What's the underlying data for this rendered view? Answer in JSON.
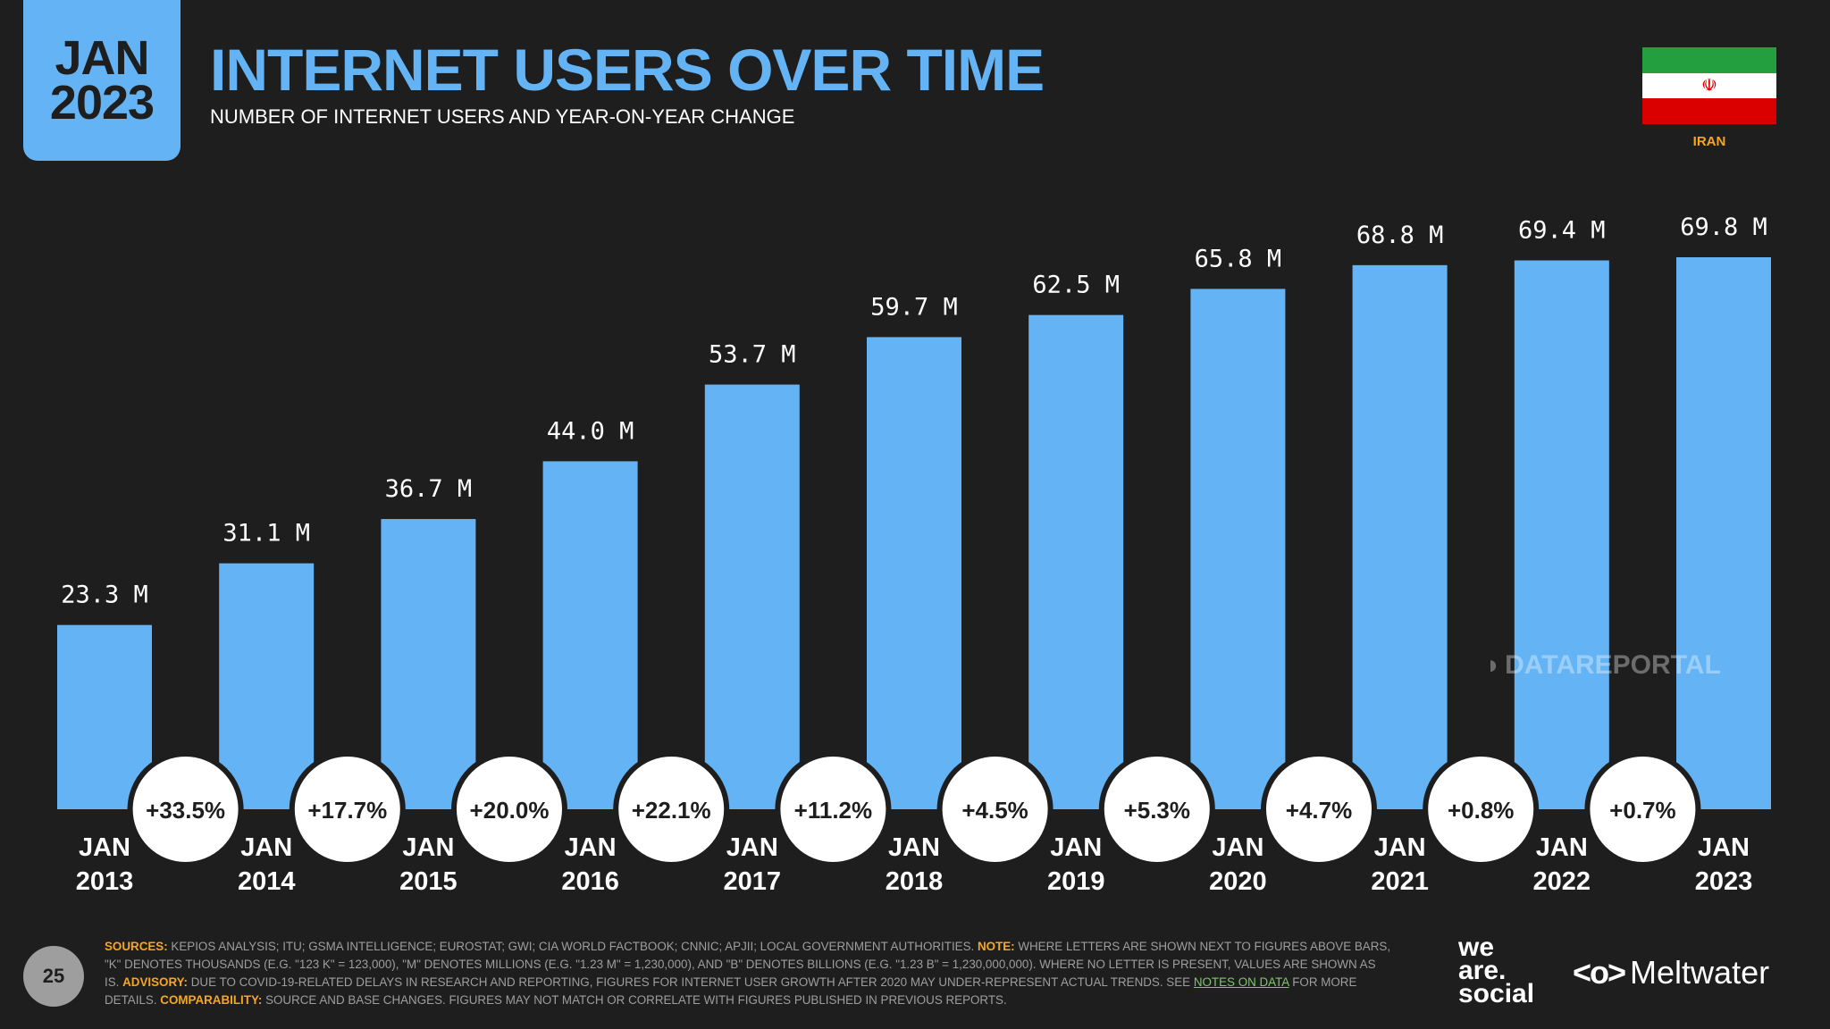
{
  "header": {
    "date_month": "JAN",
    "date_year": "2023",
    "title": "INTERNET USERS OVER TIME",
    "subtitle": "NUMBER OF INTERNET USERS AND YEAR-ON-YEAR CHANGE",
    "country": "IRAN"
  },
  "flag": {
    "emblem": "☫"
  },
  "colors": {
    "accent": "#64b4f5",
    "background": "#1e1e1e",
    "highlight": "#f5a623",
    "link": "#7cc96a"
  },
  "chart_data": {
    "type": "bar",
    "title": "INTERNET USERS OVER TIME",
    "subtitle": "NUMBER OF INTERNET USERS AND YEAR-ON-YEAR CHANGE",
    "categories": [
      "JAN 2013",
      "JAN 2014",
      "JAN 2015",
      "JAN 2016",
      "JAN 2017",
      "JAN 2018",
      "JAN 2019",
      "JAN 2020",
      "JAN 2021",
      "JAN 2022",
      "JAN 2023"
    ],
    "category_lines": [
      [
        "JAN",
        "2013"
      ],
      [
        "JAN",
        "2014"
      ],
      [
        "JAN",
        "2015"
      ],
      [
        "JAN",
        "2016"
      ],
      [
        "JAN",
        "2017"
      ],
      [
        "JAN",
        "2018"
      ],
      [
        "JAN",
        "2019"
      ],
      [
        "JAN",
        "2020"
      ],
      [
        "JAN",
        "2021"
      ],
      [
        "JAN",
        "2022"
      ],
      [
        "JAN",
        "2023"
      ]
    ],
    "values": [
      23.3,
      31.1,
      36.7,
      44.0,
      53.7,
      59.7,
      62.5,
      65.8,
      68.8,
      69.4,
      69.8
    ],
    "value_labels": [
      "23.3 M",
      "31.1 M",
      "36.7 M",
      "44.0 M",
      "53.7 M",
      "59.7 M",
      "62.5 M",
      "65.8 M",
      "68.8 M",
      "69.4 M",
      "69.8 M"
    ],
    "unit": "M",
    "yoy_change": [
      "+33.5%",
      "+17.7%",
      "+20.0%",
      "+22.1%",
      "+11.2%",
      "+4.5%",
      "+5.3%",
      "+4.7%",
      "+0.8%",
      "+0.7%"
    ],
    "ylim": [
      0,
      69.8
    ],
    "xlabel": "",
    "ylabel": "",
    "grid": false,
    "legend": "none"
  },
  "watermark": {
    "text": "DATAREPORTAL"
  },
  "footer": {
    "page_number": "25",
    "sources_key": "SOURCES:",
    "sources_text": "KEPIOS ANALYSIS; ITU; GSMA INTELLIGENCE; EUROSTAT; GWI; CIA WORLD FACTBOOK; CNNIC; APJII; LOCAL GOVERNMENT AUTHORITIES.",
    "note_key": "NOTE:",
    "note_text": "WHERE LETTERS ARE SHOWN NEXT TO FIGURES ABOVE BARS, \"K\" DENOTES THOUSANDS (E.G. \"123 K\" = 123,000), \"M\" DENOTES MILLIONS (E.G. \"1.23 M\" = 1,230,000), AND \"B\" DENOTES BILLIONS (E.G. \"1.23 B\" = 1,230,000,000). WHERE NO LETTER IS PRESENT, VALUES ARE SHOWN AS IS.",
    "advisory_key": "ADVISORY:",
    "advisory_text": "DUE TO COVID-19-RELATED DELAYS IN RESEARCH AND REPORTING, FIGURES FOR INTERNET USER GROWTH AFTER 2020 MAY UNDER-REPRESENT ACTUAL TRENDS. SEE",
    "notes_link": "NOTES ON DATA",
    "advisory_tail": "FOR MORE DETAILS.",
    "comparability_key": "COMPARABILITY:",
    "comparability_text": "SOURCE AND BASE CHANGES. FIGURES MAY NOT MATCH OR CORRELATE WITH FIGURES PUBLISHED IN PREVIOUS REPORTS."
  },
  "logos": {
    "was_line1": "we",
    "was_line2": "are.",
    "was_line3": "social",
    "meltwater_icon": "<o>",
    "meltwater": "Meltwater"
  }
}
